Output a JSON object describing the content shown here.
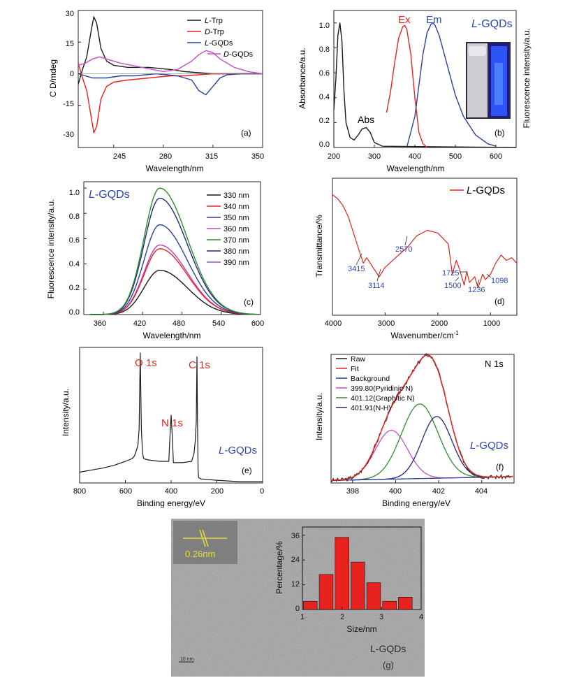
{
  "colors": {
    "black": "#1a1a1a",
    "red": "#e8231f",
    "blue": "#2b3f9e",
    "magenta": "#c44fc0",
    "purple": "#9b4fcf",
    "green": "#2e8b2e",
    "navy": "#1f2a7a",
    "label_red": "#e8231f",
    "label_blue": "#2b47b8",
    "fill_red": "#e8231f"
  },
  "panels": {
    "a": {
      "ylabel": "C D/mdeg",
      "xlabel": "Wavelength/nm",
      "tag": "(a)",
      "xticks": [
        "245",
        "280",
        "315",
        "350"
      ],
      "yticks": [
        "30",
        "15",
        "0",
        "-15",
        "-30"
      ],
      "legend": [
        {
          "prefix": "L",
          "suffix": "-Trp",
          "color": "#1a1a1a"
        },
        {
          "prefix": "D",
          "suffix": "-Trp",
          "color": "#e8231f"
        },
        {
          "prefix": "L",
          "suffix": "-GQDs",
          "color": "#2b3f9e"
        },
        {
          "prefix": "D",
          "suffix": "-GQDs",
          "color": "#c44fc0"
        }
      ]
    },
    "b": {
      "ylabel": "Absorbance/a.u.",
      "y2label": "Fluorescence intensity/a.u.",
      "xlabel": "Wavelength/nm",
      "tag": "(b)",
      "xticks": [
        "200",
        "300",
        "400",
        "500",
        "600"
      ],
      "yticks": [
        "1.0",
        "0.8",
        "0.6",
        "0.4",
        "0.2",
        "0.0"
      ],
      "ex_label": "Ex",
      "em_label": "Em",
      "abs_label": "Abs",
      "title_prefix": "L",
      "title_suffix": "-GQDs"
    },
    "c": {
      "ylabel": "Fluorescence intensity/a.u.",
      "xlabel": "Wavelength/nm",
      "tag": "(c)",
      "xticks": [
        "360",
        "420",
        "480",
        "540",
        "600"
      ],
      "yticks": [
        "1.0",
        "0.8",
        "0.6",
        "0.4",
        "0.2",
        "0.0"
      ],
      "title_prefix": "L",
      "title_suffix": "-GQDs",
      "legend": [
        {
          "label": "330 nm",
          "color": "#1a1a1a"
        },
        {
          "label": "340 nm",
          "color": "#e8231f"
        },
        {
          "label": "350 nm",
          "color": "#2b3f9e"
        },
        {
          "label": "360 nm",
          "color": "#c44fc0"
        },
        {
          "label": "370 nm",
          "color": "#2e8b2e"
        },
        {
          "label": "380 nm",
          "color": "#1f2a7a"
        },
        {
          "label": "390 nm",
          "color": "#9b4fcf"
        }
      ]
    },
    "d": {
      "ylabel": "Transmittance/%",
      "xlabel": "Wavenumber/cm",
      "xlabel_sup": "-1",
      "tag": "(d)",
      "xticks": [
        "4000",
        "3000",
        "2000",
        "1000"
      ],
      "legend_prefix": "L",
      "legend_suffix": "-GQDs",
      "peaks": [
        "3415",
        "3114",
        "2570",
        "1725",
        "1500",
        "1236",
        "1098"
      ]
    },
    "e": {
      "ylabel": "Intensity/a.u.",
      "xlabel": "Binding energy/eV",
      "tag": "(e)",
      "xticks": [
        "800",
        "600",
        "400",
        "200",
        "0"
      ],
      "o1s": "O 1s",
      "n1s": "N 1s",
      "c1s": "C 1s",
      "title_prefix": "L",
      "title_suffix": "-GQDs"
    },
    "f": {
      "ylabel": "Intensity/a.u.",
      "xlabel": "Binding energy/eV",
      "tag": "(f)",
      "xticks": [
        "398",
        "400",
        "402",
        "404"
      ],
      "title": "N 1s",
      "title_prefix": "L",
      "title_suffix": "-GQDs",
      "legend": [
        {
          "label": "Raw",
          "color": "#1a1a1a"
        },
        {
          "label": "Fit",
          "color": "#e8231f"
        },
        {
          "label": "Background",
          "color": "#2b3f9e"
        },
        {
          "label": "399.80(Pyridinic N)",
          "color": "#c44fc0"
        },
        {
          "label": "401.12(Graphitic N)",
          "color": "#2e8b2e"
        },
        {
          "label": "401.91(N-H)",
          "color": "#1f2a7a"
        }
      ]
    },
    "g": {
      "ylabel": "Percentage/%",
      "xlabel": "Size/nm",
      "tag": "(g)",
      "xticks": [
        "1",
        "2",
        "3",
        "4"
      ],
      "yticks": [
        "36",
        "24",
        "12",
        "0"
      ],
      "lattice": "0.26nm",
      "scale_bar": "10 nm",
      "sample": "L-GQDs"
    }
  },
  "chart_data": [
    {
      "type": "line",
      "panel": "a",
      "xlim": [
        220,
        350
      ],
      "ylim": [
        -35,
        30
      ],
      "series": [
        {
          "name": "L-Trp",
          "x": [
            220,
            223,
            226,
            229,
            231,
            233,
            236,
            240,
            245,
            255,
            270,
            285,
            295,
            305,
            315,
            325,
            350
          ],
          "y": [
            -5,
            2,
            8,
            20,
            27,
            24,
            12,
            6,
            4,
            3,
            3,
            2,
            1,
            0.5,
            0,
            0,
            0
          ]
        },
        {
          "name": "D-Trp",
          "x": [
            220,
            223,
            226,
            229,
            231,
            233,
            236,
            240,
            245,
            255,
            270,
            285,
            295,
            305,
            315,
            325,
            350
          ],
          "y": [
            5,
            -2,
            -8,
            -20,
            -28,
            -25,
            -12,
            -6,
            -4,
            -3,
            -2,
            -1,
            -1,
            -0.5,
            0,
            0,
            0
          ]
        },
        {
          "name": "L-GQDs",
          "x": [
            220,
            225,
            230,
            240,
            250,
            260,
            275,
            290,
            300,
            305,
            310,
            315,
            320,
            325,
            335,
            350
          ],
          "y": [
            0,
            -1,
            -2,
            -2,
            -1,
            -1,
            0,
            -1,
            -3,
            -8,
            -10,
            -6,
            -2,
            -0.5,
            0,
            0
          ]
        },
        {
          "name": "D-GQDs",
          "x": [
            220,
            225,
            230,
            235,
            240,
            250,
            265,
            280,
            290,
            300,
            305,
            310,
            315,
            320,
            330,
            340,
            350
          ],
          "y": [
            4,
            5,
            7,
            8,
            7,
            5,
            3,
            1,
            2,
            6,
            9,
            11,
            10,
            7,
            3,
            1,
            0
          ]
        }
      ]
    },
    {
      "type": "line",
      "panel": "b",
      "xlim": [
        200,
        650
      ],
      "ylim": [
        0,
        1.1
      ],
      "series": [
        {
          "name": "Abs",
          "x": [
            200,
            205,
            210,
            215,
            220,
            225,
            230,
            240,
            250,
            260,
            270,
            280,
            290,
            300,
            320,
            650
          ],
          "y": [
            0.3,
            0.55,
            0.9,
            1.0,
            0.85,
            0.45,
            0.2,
            0.08,
            0.06,
            0.1,
            0.15,
            0.16,
            0.12,
            0.04,
            0.01,
            0.0
          ]
        },
        {
          "name": "Ex",
          "x": [
            330,
            340,
            350,
            360,
            370,
            375,
            380,
            390,
            400,
            410,
            420,
            430
          ],
          "y": [
            0.28,
            0.45,
            0.68,
            0.88,
            0.97,
            0.98,
            0.95,
            0.75,
            0.4,
            0.12,
            0.03,
            0.0
          ]
        },
        {
          "name": "Em",
          "x": [
            380,
            400,
            420,
            430,
            440,
            445,
            450,
            460,
            480,
            500,
            520,
            550,
            580,
            600
          ],
          "y": [
            0.0,
            0.25,
            0.75,
            0.92,
            0.99,
            1.0,
            0.98,
            0.9,
            0.66,
            0.42,
            0.25,
            0.1,
            0.03,
            0.01
          ]
        }
      ]
    },
    {
      "type": "line",
      "panel": "c",
      "xlim": [
        330,
        600
      ],
      "ylim": [
        0,
        1.05
      ],
      "peak_x": 446,
      "series": [
        {
          "name": "330 nm",
          "peak": 0.35
        },
        {
          "name": "340 nm",
          "peak": 0.52
        },
        {
          "name": "350 nm",
          "peak": 0.71
        },
        {
          "name": "360 nm",
          "peak": 0.55
        },
        {
          "name": "370 nm",
          "peak": 1.0
        },
        {
          "name": "380 nm",
          "peak": 0.92
        },
        {
          "name": "390 nm",
          "peak": 0.55
        }
      ]
    },
    {
      "type": "line",
      "panel": "d",
      "xlim": [
        4000,
        500
      ],
      "ylim": [
        0,
        100
      ],
      "series": [
        {
          "name": "L-GQDs",
          "x": [
            4000,
            3900,
            3800,
            3700,
            3600,
            3500,
            3415,
            3350,
            3250,
            3114,
            3000,
            2800,
            2570,
            2400,
            2200,
            2000,
            1900,
            1800,
            1725,
            1650,
            1600,
            1500,
            1450,
            1400,
            1300,
            1236,
            1150,
            1098,
            1000,
            900,
            800,
            700,
            600,
            500
          ],
          "y": [
            88,
            85,
            80,
            72,
            60,
            48,
            38,
            42,
            36,
            28,
            35,
            42,
            50,
            58,
            62,
            60,
            56,
            52,
            30,
            40,
            35,
            22,
            32,
            24,
            28,
            20,
            30,
            26,
            30,
            38,
            44,
            40,
            42,
            38
          ]
        }
      ]
    },
    {
      "type": "line",
      "panel": "e",
      "xlim": [
        800,
        0
      ],
      "ylim": [
        0,
        100
      ],
      "series": [
        {
          "name": "L-GQDs",
          "x": [
            800,
            700,
            650,
            600,
            570,
            560,
            550,
            545,
            540,
            535,
            530,
            525,
            520,
            500,
            450,
            410,
            405,
            400,
            395,
            390,
            350,
            310,
            300,
            295,
            290,
            287,
            285,
            282,
            280,
            270,
            200,
            100,
            0
          ],
          "y": [
            8,
            11,
            13,
            16,
            18,
            20,
            25,
            28,
            40,
            96,
            40,
            22,
            18,
            17,
            16,
            16,
            35,
            50,
            35,
            15,
            15,
            16,
            22,
            30,
            45,
            93,
            50,
            10,
            4,
            3,
            2,
            1,
            1
          ]
        }
      ]
    },
    {
      "type": "line",
      "panel": "f",
      "xlim": [
        397,
        405.5
      ],
      "ylim": [
        0,
        100
      ],
      "components": [
        {
          "name": "399.80(Pyridinic N)",
          "center": 399.8,
          "height": 38,
          "width": 0.75
        },
        {
          "name": "401.12(Graphitic N)",
          "center": 401.12,
          "height": 58,
          "width": 0.85
        },
        {
          "name": "401.91(N-H)",
          "center": 401.91,
          "height": 48,
          "width": 0.7
        }
      ],
      "series": [
        {
          "name": "Raw"
        },
        {
          "name": "Fit"
        },
        {
          "name": "Background"
        }
      ]
    },
    {
      "type": "bar",
      "panel": "g",
      "xlim": [
        1,
        4
      ],
      "ylim": [
        0,
        40
      ],
      "x": [
        1.2,
        1.6,
        2.0,
        2.4,
        2.8,
        3.2,
        3.6
      ],
      "values": [
        4,
        17,
        35,
        23,
        13,
        4,
        6
      ]
    }
  ]
}
